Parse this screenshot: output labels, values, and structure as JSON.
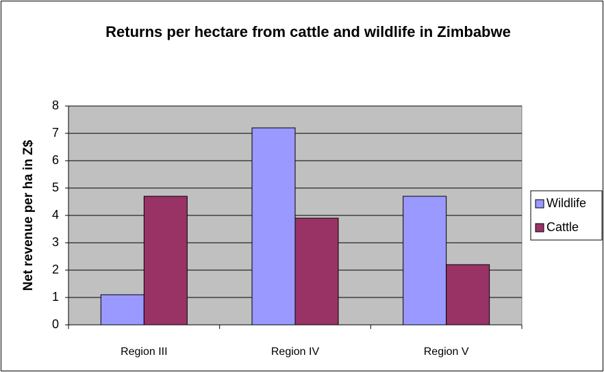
{
  "chart_data": {
    "type": "bar",
    "title": "Returns per hectare from cattle and wildlife in Zimbabwe",
    "y_label": "Net revenue per ha in Z$",
    "categories": [
      "Region III",
      "Region IV",
      "Region V"
    ],
    "series": [
      {
        "name": "Wildlife",
        "color": "#9999ff",
        "values": [
          1.1,
          7.2,
          4.7
        ]
      },
      {
        "name": "Cattle",
        "color": "#993366",
        "values": [
          4.7,
          3.9,
          2.2
        ]
      }
    ],
    "ylim": [
      0,
      8
    ],
    "yticks": [
      0,
      1,
      2,
      3,
      4,
      5,
      6,
      7,
      8
    ],
    "grid": true,
    "legend": "right"
  }
}
